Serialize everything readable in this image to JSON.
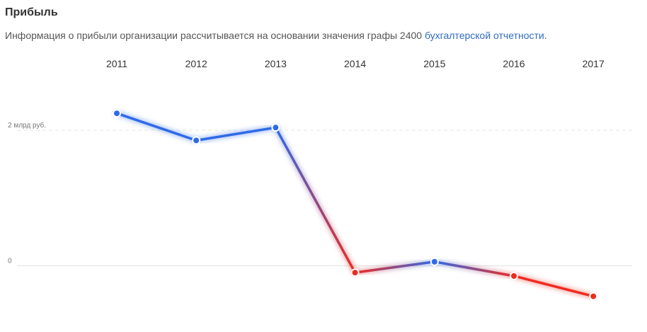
{
  "section": {
    "title": "Прибыль",
    "description_prefix": "Информация о прибыли организации рассчитывается на основании значения графы 2400 ",
    "description_link": "бухгалтерской отчетности",
    "description_suffix": "."
  },
  "chart_data": {
    "type": "line",
    "x": [
      "2011",
      "2012",
      "2013",
      "2014",
      "2015",
      "2016",
      "2017"
    ],
    "series": [
      {
        "values": [
          2.25,
          1.85,
          2.04,
          -0.1,
          0.06,
          -0.15,
          -0.45
        ]
      }
    ],
    "y_ticks": [
      {
        "value": 2,
        "label": "2 млрд руб."
      },
      {
        "value": 0,
        "label": "0"
      }
    ],
    "positive_color": "#2f6ae8",
    "negative_color": "#ee2b20",
    "grid": true,
    "legend": "none"
  }
}
